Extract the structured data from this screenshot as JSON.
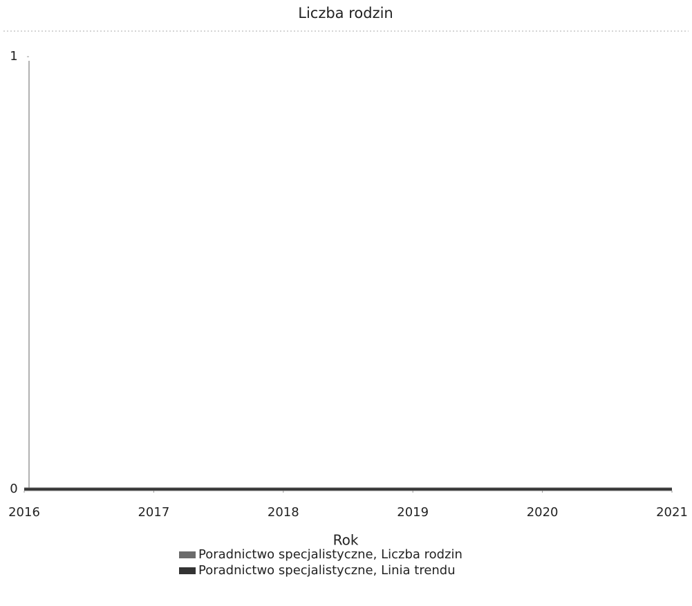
{
  "chart_data": {
    "type": "line",
    "title": "Liczba rodzin",
    "xlabel": "Rok",
    "x": [
      2016,
      2017,
      2018,
      2019,
      2020,
      2021
    ],
    "series": [
      {
        "name": "Poradnictwo specjalistyczne, Liczba rodzin",
        "color": "#6b6b6b",
        "values": [
          0,
          0,
          0,
          0,
          0,
          0
        ]
      },
      {
        "name": "Poradnictwo specjalistyczne, Linia trendu",
        "color": "#333333",
        "values": [
          0,
          0,
          0,
          0,
          0,
          0
        ]
      }
    ],
    "xlim": [
      2016,
      2021
    ],
    "xticks": [
      2016,
      2017,
      2018,
      2019,
      2020,
      2021
    ],
    "ylim": [
      0,
      1
    ],
    "yticks": [
      0,
      1
    ],
    "grid": false,
    "legend": "bottom"
  }
}
